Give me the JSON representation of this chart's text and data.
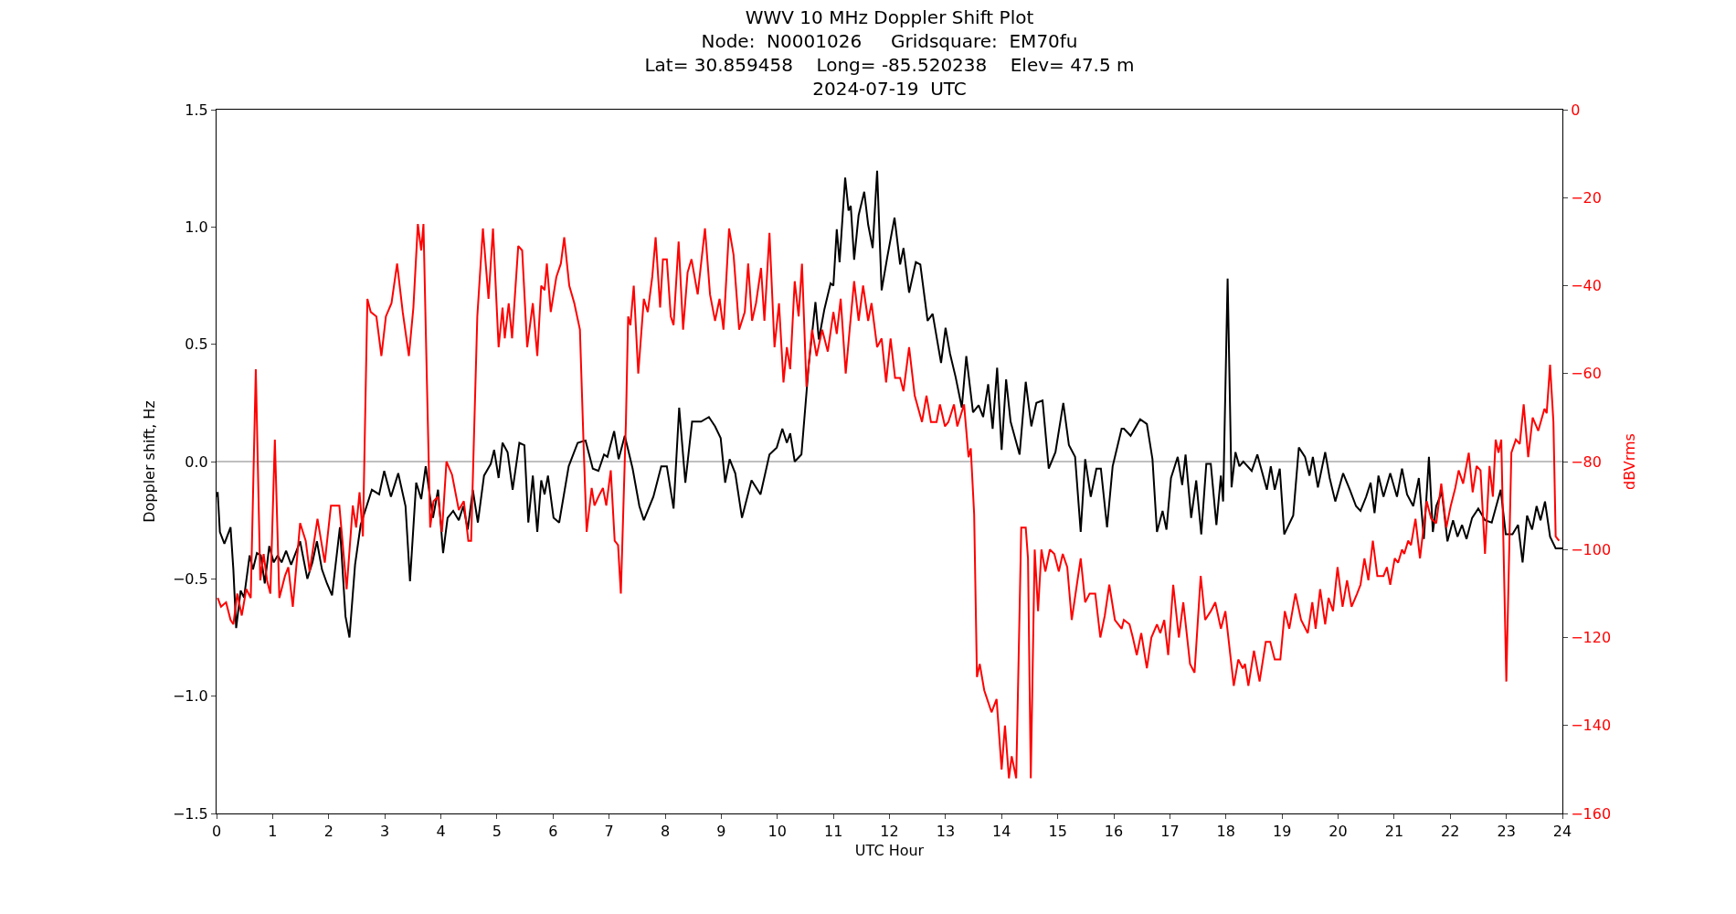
{
  "chart_data": {
    "type": "line",
    "title": "WWV 10 MHz Doppler Shift Plot\nNode:  N0001026     Gridsquare:  EM70fu\nLat= 30.859458    Long= -85.520238    Elev= 47.5 m\n2024-07-19  UTC",
    "xlabel": "UTC Hour",
    "ylabel": "Doppler shift, Hz",
    "y2label": "dBVrms",
    "xlim": [
      0,
      24
    ],
    "xticks": [
      0,
      1,
      2,
      3,
      4,
      5,
      6,
      7,
      8,
      9,
      10,
      11,
      12,
      13,
      14,
      15,
      16,
      17,
      18,
      19,
      20,
      21,
      22,
      23,
      24
    ],
    "ylim": [
      -1.5,
      1.5
    ],
    "yticks": [
      {
        "value": -1.5,
        "label": "−1.5"
      },
      {
        "value": -1.0,
        "label": "−1.0"
      },
      {
        "value": -0.5,
        "label": "−0.5"
      },
      {
        "value": 0,
        "label": "0.0"
      },
      {
        "value": 0.5,
        "label": "0.5"
      },
      {
        "value": 1.0,
        "label": "1.0"
      },
      {
        "value": 1.5,
        "label": "1.5"
      }
    ],
    "y2lim": [
      -160,
      0
    ],
    "y2ticks": [
      {
        "value": -160,
        "label": "−160"
      },
      {
        "value": -140,
        "label": "−140"
      },
      {
        "value": -120,
        "label": "−120"
      },
      {
        "value": -100,
        "label": "−100"
      },
      {
        "value": -80,
        "label": "−80"
      },
      {
        "value": -60,
        "label": "−60"
      },
      {
        "value": -40,
        "label": "−40"
      },
      {
        "value": -20,
        "label": "−20"
      },
      0
    ],
    "grid": false,
    "marker": "none",
    "line_style": "solid",
    "ref_lines": [
      {
        "axis": "y",
        "value": 0,
        "color": "#808080"
      }
    ],
    "series": [
      {
        "color": "#000000",
        "axis": "y",
        "x": [
          0,
          0.02,
          0.06,
          0.14,
          0.25,
          0.3,
          0.35,
          0.43,
          0.49,
          0.59,
          0.65,
          0.72,
          0.79,
          0.86,
          0.94,
          1.02,
          1.09,
          1.16,
          1.24,
          1.33,
          1.49,
          1.62,
          1.71,
          1.79,
          1.88,
          1.97,
          2.06,
          2.2,
          2.3,
          2.37,
          2.47,
          2.57,
          2.77,
          2.9,
          2.99,
          3.11,
          3.24,
          3.37,
          3.45,
          3.56,
          3.65,
          3.73,
          3.86,
          3.95,
          4.04,
          4.12,
          4.22,
          4.32,
          4.4,
          4.48,
          4.57,
          4.66,
          4.77,
          4.89,
          4.95,
          5.03,
          5.1,
          5.19,
          5.28,
          5.4,
          5.49,
          5.56,
          5.64,
          5.72,
          5.79,
          5.85,
          5.91,
          6.01,
          6.11,
          6.28,
          6.44,
          6.58,
          6.71,
          6.81,
          6.91,
          6.97,
          7.09,
          7.17,
          7.28,
          7.42,
          7.54,
          7.62,
          7.79,
          7.93,
          8.03,
          8.15,
          8.25,
          8.36,
          8.48,
          8.64,
          8.78,
          8.89,
          8.99,
          9.07,
          9.15,
          9.25,
          9.37,
          9.54,
          9.7,
          9.86,
          9.99,
          10.09,
          10.17,
          10.23,
          10.31,
          10.43,
          10.56,
          10.68,
          10.74,
          10.84,
          10.95,
          11.0,
          11.06,
          11.11,
          11.21,
          11.27,
          11.31,
          11.37,
          11.45,
          11.55,
          11.62,
          11.7,
          11.78,
          11.86,
          11.96,
          12.09,
          12.19,
          12.25,
          12.35,
          12.47,
          12.55,
          12.68,
          12.77,
          12.92,
          13.0,
          13.08,
          13.18,
          13.29,
          13.37,
          13.49,
          13.59,
          13.67,
          13.76,
          13.84,
          13.92,
          14.0,
          14.08,
          14.16,
          14.32,
          14.43,
          14.53,
          14.62,
          14.73,
          14.84,
          14.96,
          15.1,
          15.2,
          15.31,
          15.41,
          15.49,
          15.59,
          15.69,
          15.77,
          15.88,
          15.98,
          16.14,
          16.18,
          16.3,
          16.47,
          16.59,
          16.69,
          16.77,
          16.87,
          16.94,
          17.02,
          17.14,
          17.22,
          17.28,
          17.38,
          17.47,
          17.56,
          17.65,
          17.73,
          17.83,
          17.91,
          17.95,
          18.03,
          18.1,
          18.17,
          18.24,
          18.31,
          18.46,
          18.56,
          18.73,
          18.8,
          18.87,
          18.96,
          19.04,
          19.2,
          19.3,
          19.41,
          19.49,
          19.55,
          19.64,
          19.77,
          19.85,
          19.95,
          20.09,
          20.21,
          20.32,
          20.4,
          20.5,
          20.58,
          20.65,
          20.72,
          20.81,
          20.93,
          21.05,
          21.14,
          21.23,
          21.34,
          21.44,
          21.53,
          21.62,
          21.69,
          21.75,
          21.85,
          21.95,
          22.05,
          22.13,
          22.21,
          22.29,
          22.39,
          22.5,
          22.62,
          22.74,
          22.9,
          22.99,
          23.11,
          23.21,
          23.29,
          23.37,
          23.46,
          23.54,
          23.61,
          23.69,
          23.78,
          23.88,
          23.94,
          24
        ],
        "values": [
          -0.15,
          -0.13,
          -0.3,
          -0.35,
          -0.28,
          -0.46,
          -0.71,
          -0.55,
          -0.58,
          -0.4,
          -0.46,
          -0.39,
          -0.4,
          -0.52,
          -0.36,
          -0.43,
          -0.4,
          -0.43,
          -0.38,
          -0.44,
          -0.34,
          -0.5,
          -0.43,
          -0.34,
          -0.46,
          -0.52,
          -0.57,
          -0.28,
          -0.66,
          -0.75,
          -0.44,
          -0.27,
          -0.12,
          -0.14,
          -0.04,
          -0.15,
          -0.05,
          -0.19,
          -0.51,
          -0.09,
          -0.16,
          -0.02,
          -0.24,
          -0.12,
          -0.39,
          -0.24,
          -0.21,
          -0.25,
          -0.19,
          -0.29,
          -0.12,
          -0.26,
          -0.06,
          -0.01,
          0.05,
          -0.07,
          0.08,
          0.04,
          -0.12,
          0.08,
          0.07,
          -0.26,
          -0.06,
          -0.3,
          -0.08,
          -0.14,
          -0.06,
          -0.24,
          -0.26,
          -0.02,
          0.08,
          0.09,
          -0.03,
          -0.04,
          0.03,
          0.02,
          0.13,
          0.01,
          0.11,
          -0.03,
          -0.19,
          -0.25,
          -0.15,
          -0.02,
          -0.02,
          -0.2,
          0.23,
          -0.09,
          0.17,
          0.17,
          0.19,
          0.15,
          0.1,
          -0.09,
          0.01,
          -0.05,
          -0.24,
          -0.08,
          -0.14,
          0.03,
          0.06,
          0.14,
          0.08,
          0.12,
          0.0,
          0.03,
          0.41,
          0.68,
          0.52,
          0.65,
          0.76,
          0.75,
          0.99,
          0.85,
          1.21,
          1.07,
          1.09,
          0.86,
          1.05,
          1.15,
          1.01,
          0.91,
          1.24,
          0.73,
          0.87,
          1.04,
          0.84,
          0.91,
          0.72,
          0.85,
          0.84,
          0.6,
          0.63,
          0.42,
          0.57,
          0.46,
          0.36,
          0.23,
          0.45,
          0.21,
          0.24,
          0.19,
          0.33,
          0.14,
          0.4,
          0.05,
          0.35,
          0.17,
          0.03,
          0.34,
          0.15,
          0.25,
          0.26,
          -0.03,
          0.04,
          0.25,
          0.07,
          0.02,
          -0.3,
          0.01,
          -0.15,
          -0.03,
          -0.03,
          -0.28,
          -0.02,
          0.14,
          0.14,
          0.11,
          0.18,
          0.16,
          0.01,
          -0.3,
          -0.21,
          -0.29,
          -0.07,
          0.02,
          -0.1,
          0.03,
          -0.24,
          -0.08,
          -0.31,
          -0.01,
          -0.01,
          -0.27,
          -0.06,
          -0.17,
          0.78,
          -0.11,
          0.04,
          -0.02,
          0.0,
          -0.04,
          0.03,
          -0.12,
          -0.02,
          -0.12,
          -0.03,
          -0.31,
          -0.23,
          0.06,
          0.02,
          -0.06,
          0.02,
          -0.11,
          0.04,
          -0.07,
          -0.17,
          -0.05,
          -0.12,
          -0.19,
          -0.21,
          -0.15,
          -0.09,
          -0.22,
          -0.06,
          -0.15,
          -0.05,
          -0.15,
          -0.03,
          -0.14,
          -0.19,
          -0.07,
          -0.33,
          0.02,
          -0.3,
          -0.19,
          -0.13,
          -0.34,
          -0.25,
          -0.32,
          -0.27,
          -0.33,
          -0.24,
          -0.2,
          -0.25,
          -0.26,
          -0.12,
          -0.31,
          -0.31,
          -0.27,
          -0.43,
          -0.23,
          -0.29,
          -0.19,
          -0.25,
          -0.17,
          -0.32,
          -0.37,
          -0.37,
          -0.37
        ]
      },
      {
        "color": "#ff0000",
        "axis": "y2",
        "x": [
          0.02,
          0.08,
          0.17,
          0.25,
          0.3,
          0.37,
          0.45,
          0.53,
          0.61,
          0.7,
          0.78,
          0.84,
          0.9,
          0.96,
          1.04,
          1.12,
          1.22,
          1.28,
          1.36,
          1.49,
          1.59,
          1.66,
          1.8,
          1.93,
          2.04,
          2.19,
          2.32,
          2.43,
          2.49,
          2.55,
          2.61,
          2.69,
          2.75,
          2.85,
          2.94,
          3.02,
          3.12,
          3.22,
          3.32,
          3.43,
          3.51,
          3.59,
          3.65,
          3.69,
          3.75,
          3.81,
          3.87,
          3.95,
          4.02,
          4.1,
          4.2,
          4.32,
          4.41,
          4.49,
          4.54,
          4.65,
          4.75,
          4.85,
          4.93,
          5.03,
          5.1,
          5.14,
          5.21,
          5.27,
          5.38,
          5.45,
          5.54,
          5.64,
          5.72,
          5.79,
          5.85,
          5.89,
          5.96,
          6.06,
          6.14,
          6.2,
          6.29,
          6.38,
          6.48,
          6.55,
          6.6,
          6.69,
          6.74,
          6.81,
          6.89,
          6.95,
          7.03,
          7.1,
          7.16,
          7.21,
          7.3,
          7.34,
          7.38,
          7.44,
          7.52,
          7.62,
          7.69,
          7.77,
          7.83,
          7.91,
          7.96,
          8.03,
          8.1,
          8.15,
          8.24,
          8.32,
          8.4,
          8.47,
          8.58,
          8.71,
          8.8,
          8.89,
          8.97,
          9.04,
          9.14,
          9.22,
          9.32,
          9.42,
          9.48,
          9.55,
          9.62,
          9.71,
          9.77,
          9.86,
          9.95,
          10.03,
          10.11,
          10.17,
          10.23,
          10.31,
          10.38,
          10.44,
          10.52,
          10.62,
          10.7,
          10.8,
          10.9,
          11.0,
          11.06,
          11.13,
          11.22,
          11.29,
          11.37,
          11.45,
          11.53,
          11.62,
          11.68,
          11.78,
          11.86,
          11.94,
          12.02,
          12.1,
          12.19,
          12.25,
          12.35,
          12.45,
          12.58,
          12.66,
          12.74,
          12.84,
          12.9,
          12.99,
          13.05,
          13.15,
          13.21,
          13.33,
          13.41,
          13.45,
          13.51,
          13.56,
          13.61,
          13.69,
          13.82,
          13.91,
          14.0,
          14.06,
          14.13,
          14.18,
          14.26,
          14.35,
          14.43,
          14.47,
          14.52,
          14.59,
          14.65,
          14.71,
          14.78,
          14.86,
          14.94,
          15.02,
          15.09,
          15.17,
          15.25,
          15.33,
          15.41,
          15.49,
          15.57,
          15.67,
          15.76,
          15.84,
          15.92,
          16.02,
          16.14,
          16.18,
          16.28,
          16.34,
          16.41,
          16.49,
          16.59,
          16.67,
          16.77,
          16.83,
          16.9,
          16.97,
          17.06,
          17.16,
          17.24,
          17.36,
          17.44,
          17.55,
          17.63,
          17.73,
          17.81,
          17.91,
          17.99,
          18.14,
          18.22,
          18.3,
          18.34,
          18.4,
          18.5,
          18.6,
          18.71,
          18.79,
          18.87,
          18.97,
          19.05,
          19.13,
          19.24,
          19.34,
          19.46,
          19.54,
          19.6,
          19.68,
          19.77,
          19.83,
          19.91,
          19.99,
          20.08,
          20.16,
          20.24,
          20.34,
          20.4,
          20.47,
          20.54,
          20.62,
          20.7,
          20.81,
          20.87,
          20.93,
          21.01,
          21.07,
          21.14,
          21.18,
          21.25,
          21.3,
          21.38,
          21.46,
          21.58,
          21.66,
          21.75,
          21.84,
          21.93,
          22.01,
          22.09,
          22.15,
          22.23,
          22.33,
          22.4,
          22.47,
          22.54,
          22.62,
          22.7,
          22.76,
          22.81,
          22.86,
          22.91,
          23.0,
          23.09,
          23.17,
          23.24,
          23.31,
          23.39,
          23.47,
          23.57,
          23.68,
          23.72,
          23.78,
          23.84,
          23.88,
          23.94
        ],
        "values": [
          -111,
          -113,
          -112,
          -116,
          -117,
          -110,
          -115,
          -109,
          -111,
          -59,
          -107,
          -101,
          -107,
          -110,
          -75,
          -111,
          -106,
          -104,
          -113,
          -94,
          -98,
          -105,
          -93,
          -103,
          -90,
          -90,
          -109,
          -90,
          -95,
          -87,
          -97,
          -43,
          -46,
          -47,
          -56,
          -47,
          -44,
          -35,
          -46,
          -56,
          -45,
          -26,
          -32,
          -26,
          -61,
          -95,
          -89,
          -88,
          -96,
          -80,
          -83,
          -91,
          -89,
          -98,
          -98,
          -47,
          -27,
          -43,
          -27,
          -54,
          -45,
          -52,
          -44,
          -52,
          -31,
          -32,
          -54,
          -44,
          -56,
          -40,
          -41,
          -35,
          -46,
          -38,
          -35,
          -29,
          -40,
          -44,
          -50,
          -78,
          -96,
          -86,
          -90,
          -88,
          -86,
          -90,
          -82,
          -98,
          -99,
          -110,
          -71,
          -47,
          -49,
          -40,
          -60,
          -43,
          -46,
          -38,
          -29,
          -45,
          -34,
          -34,
          -47,
          -49,
          -30,
          -50,
          -37,
          -34,
          -42,
          -27,
          -42,
          -48,
          -43,
          -50,
          -27,
          -33,
          -50,
          -46,
          -35,
          -48,
          -44,
          -36,
          -48,
          -28,
          -54,
          -44,
          -62,
          -54,
          -59,
          -39,
          -47,
          -35,
          -63,
          -50,
          -56,
          -50,
          -55,
          -46,
          -51,
          -43,
          -60,
          -50,
          -39,
          -48,
          -40,
          -48,
          -44,
          -54,
          -52,
          -62,
          -52,
          -61,
          -61,
          -64,
          -54,
          -65,
          -71,
          -65,
          -71,
          -71,
          -67,
          -72,
          -71,
          -67,
          -72,
          -67,
          -79,
          -77,
          -92,
          -129,
          -126,
          -132,
          -137,
          -134,
          -150,
          -140,
          -152,
          -147,
          -152,
          -95,
          -95,
          -102,
          -152,
          -100,
          -114,
          -100,
          -105,
          -100,
          -101,
          -105,
          -101,
          -104,
          -116,
          -109,
          -102,
          -112,
          -110,
          -110,
          -120,
          -115,
          -108,
          -116,
          -118,
          -116,
          -117,
          -120,
          -124,
          -119,
          -127,
          -120,
          -117,
          -119,
          -116,
          -124,
          -108,
          -120,
          -112,
          -126,
          -128,
          -106,
          -116,
          -114,
          -112,
          -118,
          -114,
          -131,
          -125,
          -127,
          -126,
          -131,
          -123,
          -130,
          -121,
          -121,
          -125,
          -125,
          -114,
          -118,
          -110,
          -116,
          -119,
          -112,
          -118,
          -109,
          -117,
          -111,
          -114,
          -104,
          -113,
          -107,
          -113,
          -110,
          -108,
          -102,
          -107,
          -98,
          -106,
          -106,
          -104,
          -108,
          -102,
          -103,
          -100,
          -101,
          -98,
          -99,
          -93,
          -102,
          -89,
          -93,
          -94,
          -85,
          -95,
          -90,
          -86,
          -82,
          -85,
          -78,
          -87,
          -81,
          -82,
          -101,
          -81,
          -88,
          -75,
          -78,
          -75,
          -130,
          -78,
          -75,
          -76,
          -67,
          -79,
          -70,
          -73,
          -68,
          -69,
          -58,
          -71,
          -97,
          -98
        ]
      }
    ]
  }
}
